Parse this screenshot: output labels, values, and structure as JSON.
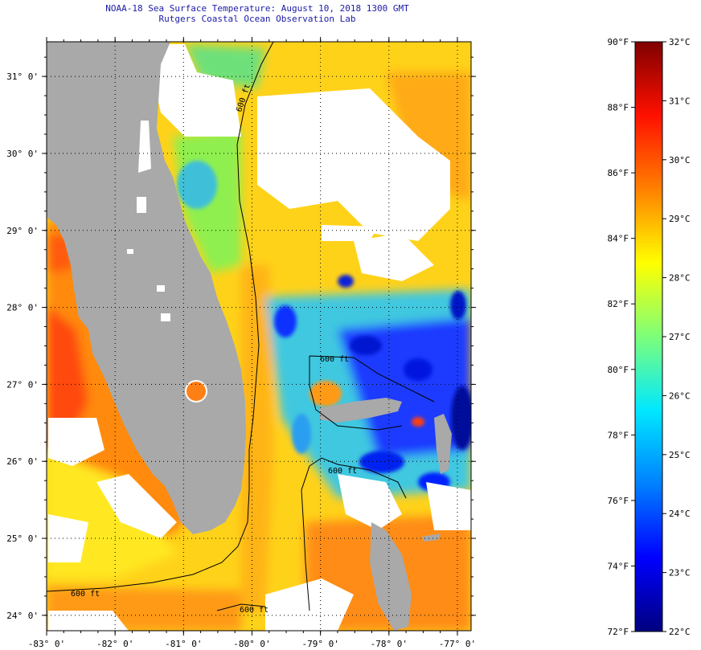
{
  "title": {
    "line1": "NOAA-18 Sea Surface Temperature:  August 10, 2018 1300 GMT",
    "line2": "Rutgers Coastal Ocean Observation Lab"
  },
  "map": {
    "lon_range": [
      -83.0,
      -76.8
    ],
    "lat_range": [
      23.8,
      31.45
    ],
    "lon_ticks": [
      {
        "value": -83,
        "label": "-83° 0'"
      },
      {
        "value": -82,
        "label": "-82° 0'"
      },
      {
        "value": -81,
        "label": "-81° 0'"
      },
      {
        "value": -80,
        "label": "-80° 0'"
      },
      {
        "value": -79,
        "label": "-79° 0'"
      },
      {
        "value": -78,
        "label": "-78° 0'"
      },
      {
        "value": -77,
        "label": "-77° 0'"
      }
    ],
    "lat_ticks": [
      {
        "value": 31,
        "label": "31° 0'"
      },
      {
        "value": 30,
        "label": "30° 0'"
      },
      {
        "value": 29,
        "label": "29° 0'"
      },
      {
        "value": 28,
        "label": "28° 0'"
      },
      {
        "value": 27,
        "label": "27° 0'"
      },
      {
        "value": 26,
        "label": "26° 0'"
      },
      {
        "value": 25,
        "label": "25° 0'"
      },
      {
        "value": 24,
        "label": "24° 0'"
      }
    ],
    "contour_labels": [
      "600 ft",
      "600 ft",
      "600 ft",
      "600 ft",
      "600 ft"
    ],
    "colors": {
      "land": "#a9a9a9",
      "cloud": "#ffffff",
      "contour": "#000000"
    }
  },
  "colorbar": {
    "range_f": [
      72,
      90
    ],
    "range_c": [
      22,
      32
    ],
    "fahrenheit_labels": [
      {
        "value": 90,
        "label": "90°F"
      },
      {
        "value": 88,
        "label": "88°F"
      },
      {
        "value": 86,
        "label": "86°F"
      },
      {
        "value": 84,
        "label": "84°F"
      },
      {
        "value": 82,
        "label": "82°F"
      },
      {
        "value": 80,
        "label": "80°F"
      },
      {
        "value": 78,
        "label": "78°F"
      },
      {
        "value": 76,
        "label": "76°F"
      },
      {
        "value": 74,
        "label": "74°F"
      },
      {
        "value": 72,
        "label": "72°F"
      }
    ],
    "celsius_labels": [
      {
        "value": 32,
        "label": "32°C"
      },
      {
        "value": 31,
        "label": "31°C"
      },
      {
        "value": 30,
        "label": "30°C"
      },
      {
        "value": 29,
        "label": "29°C"
      },
      {
        "value": 28,
        "label": "28°C"
      },
      {
        "value": 27,
        "label": "27°C"
      },
      {
        "value": 26,
        "label": "26°C"
      },
      {
        "value": 25,
        "label": "25°C"
      },
      {
        "value": 24,
        "label": "24°C"
      },
      {
        "value": 23,
        "label": "23°C"
      },
      {
        "value": 22,
        "label": "22°C"
      }
    ],
    "stops": [
      "#00007f",
      "#0000ff",
      "#0080ff",
      "#00e8ff",
      "#7dff7a",
      "#ffff00",
      "#ff8000",
      "#ff1000",
      "#7f0000"
    ]
  }
}
